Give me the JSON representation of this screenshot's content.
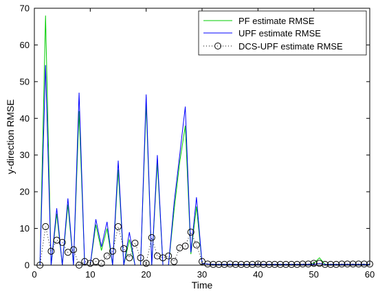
{
  "chart_data": {
    "type": "line",
    "title": "",
    "xlabel": "Time",
    "ylabel": "y-direction RMSE",
    "xlim": [
      0,
      60
    ],
    "ylim": [
      0,
      70
    ],
    "xticks": [
      0,
      10,
      20,
      30,
      40,
      50,
      60
    ],
    "yticks": [
      0,
      10,
      20,
      30,
      40,
      50,
      60,
      70
    ],
    "grid": false,
    "legend_position": "top-right",
    "x": [
      1,
      2,
      3,
      4,
      5,
      6,
      7,
      8,
      9,
      10,
      11,
      12,
      13,
      14,
      15,
      16,
      17,
      18,
      19,
      20,
      21,
      22,
      23,
      24,
      25,
      26,
      27,
      28,
      29,
      30,
      31,
      32,
      33,
      34,
      35,
      36,
      37,
      38,
      39,
      40,
      41,
      42,
      43,
      44,
      45,
      46,
      47,
      48,
      49,
      50,
      51,
      52,
      53,
      54,
      55,
      56,
      57,
      58,
      59,
      60
    ],
    "series": [
      {
        "name": "PF estimate RMSE",
        "color": "#00cc00",
        "style": "solid",
        "values": [
          0,
          68,
          0,
          14,
          0,
          16.5,
          0,
          42,
          0,
          0,
          11,
          4,
          10,
          0,
          26,
          0,
          7,
          0,
          0,
          44,
          0,
          28,
          0,
          0,
          15,
          28,
          38,
          3,
          16,
          0.5,
          0.3,
          0.2,
          0.2,
          0.2,
          0.2,
          0.2,
          0.2,
          0.2,
          0.2,
          0.2,
          0.2,
          0.2,
          0.2,
          0.2,
          0.2,
          0.2,
          0.2,
          0.2,
          0.2,
          0.5,
          2,
          0.2,
          0.2,
          0.2,
          0.2,
          0.2,
          0.2,
          0.2,
          0.2,
          0.2
        ]
      },
      {
        "name": "UPF estimate RMSE",
        "color": "#0000ff",
        "style": "solid",
        "values": [
          0,
          54.5,
          0,
          15.5,
          0,
          18.2,
          0,
          47,
          0,
          0,
          12.5,
          5,
          11.8,
          0,
          28.5,
          0,
          9,
          0,
          0,
          46.5,
          0,
          30,
          0,
          0,
          17,
          30,
          43.2,
          3.5,
          18.5,
          0.5,
          0.3,
          0.2,
          0.2,
          0.2,
          0.2,
          0.2,
          0.2,
          0.2,
          0.2,
          0.2,
          0.2,
          0.2,
          0.2,
          0.2,
          0.2,
          0.2,
          0.2,
          0.2,
          0.2,
          0.2,
          0.5,
          0.2,
          0.2,
          0.2,
          0.2,
          0.2,
          0.2,
          0.2,
          0.2,
          0.2
        ]
      },
      {
        "name": "DCS-UPF estimate RMSE",
        "color": "#000000",
        "style": "dotted",
        "marker": "circle",
        "values": [
          0,
          10.5,
          3.8,
          6.8,
          6.2,
          3.5,
          4.2,
          0,
          1,
          0.5,
          1,
          0.5,
          2.5,
          3.8,
          10.5,
          4.5,
          2,
          6,
          2,
          0.5,
          7.5,
          2.5,
          2,
          2.5,
          1,
          4.7,
          5.2,
          9,
          5.5,
          1,
          0.3,
          0.2,
          0.2,
          0.2,
          0.3,
          0.2,
          0.2,
          0.2,
          0.2,
          0.3,
          0.2,
          0.2,
          0.2,
          0.2,
          0.2,
          0.2,
          0.2,
          0.3,
          0.3,
          0.5,
          0.5,
          0.2,
          0.2,
          0.2,
          0.3,
          0.3,
          0.3,
          0.3,
          0.3,
          0.3
        ]
      }
    ]
  }
}
